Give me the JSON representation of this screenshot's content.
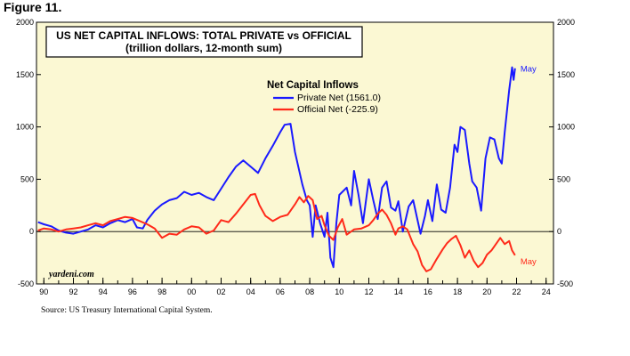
{
  "figure_label": "Figure 11.",
  "source_note": "Source: US Treasury International Capital System.",
  "watermark": "yardeni.com",
  "colors": {
    "background": "#fbf8d3",
    "private": "#1a1aff",
    "official": "#ff2a1a",
    "axis": "#000000"
  },
  "chart_data": {
    "type": "line",
    "title": "US NET CAPITAL INFLOWS: TOTAL PRIVATE vs OFFICIAL",
    "subtitle": "(trillion dollars, 12-month sum)",
    "legend_title": "Net Capital Inflows",
    "legend_position": "top-center",
    "ylim": [
      -500,
      2000
    ],
    "yticks": [
      -500,
      0,
      500,
      1000,
      1500,
      2000
    ],
    "ytick_labels": [
      "-500",
      "0",
      "500",
      "1000",
      "1500",
      "2000"
    ],
    "xlim": [
      1989.5,
      2024.5
    ],
    "xticks": [
      1990,
      1992,
      1994,
      1996,
      1998,
      2000,
      2002,
      2004,
      2006,
      2008,
      2010,
      2012,
      2014,
      2016,
      2018,
      2020,
      2022,
      2024
    ],
    "xtick_labels": [
      "90",
      "92",
      "94",
      "96",
      "98",
      "00",
      "02",
      "04",
      "06",
      "08",
      "10",
      "12",
      "14",
      "16",
      "18",
      "20",
      "22",
      "24"
    ],
    "grid": false,
    "zero_line": true,
    "series": [
      {
        "name": "Private Net (1561.0)",
        "color": "#1a1aff",
        "end_label": "May",
        "points": [
          [
            1989.6,
            90
          ],
          [
            1990.0,
            70
          ],
          [
            1990.5,
            50
          ],
          [
            1991.0,
            10
          ],
          [
            1991.5,
            -10
          ],
          [
            1992.0,
            -20
          ],
          [
            1992.5,
            0
          ],
          [
            1993.0,
            20
          ],
          [
            1993.5,
            60
          ],
          [
            1994.0,
            40
          ],
          [
            1994.5,
            80
          ],
          [
            1995.0,
            110
          ],
          [
            1995.5,
            90
          ],
          [
            1996.0,
            120
          ],
          [
            1996.3,
            40
          ],
          [
            1996.7,
            30
          ],
          [
            1997.0,
            110
          ],
          [
            1997.5,
            200
          ],
          [
            1998.0,
            260
          ],
          [
            1998.5,
            300
          ],
          [
            1999.0,
            320
          ],
          [
            1999.5,
            380
          ],
          [
            2000.0,
            350
          ],
          [
            2000.5,
            370
          ],
          [
            2001.0,
            330
          ],
          [
            2001.5,
            300
          ],
          [
            2002.0,
            410
          ],
          [
            2002.5,
            520
          ],
          [
            2003.0,
            620
          ],
          [
            2003.5,
            680
          ],
          [
            2004.0,
            620
          ],
          [
            2004.5,
            560
          ],
          [
            2005.0,
            700
          ],
          [
            2005.5,
            820
          ],
          [
            2006.0,
            950
          ],
          [
            2006.3,
            1020
          ],
          [
            2006.7,
            1030
          ],
          [
            2007.0,
            760
          ],
          [
            2007.5,
            450
          ],
          [
            2007.8,
            300
          ],
          [
            2008.0,
            250
          ],
          [
            2008.2,
            -50
          ],
          [
            2008.4,
            250
          ],
          [
            2008.7,
            80
          ],
          [
            2009.0,
            -50
          ],
          [
            2009.2,
            180
          ],
          [
            2009.4,
            -250
          ],
          [
            2009.6,
            -340
          ],
          [
            2009.8,
            80
          ],
          [
            2010.0,
            350
          ],
          [
            2010.5,
            420
          ],
          [
            2010.8,
            250
          ],
          [
            2011.0,
            580
          ],
          [
            2011.3,
            350
          ],
          [
            2011.6,
            80
          ],
          [
            2012.0,
            500
          ],
          [
            2012.3,
            300
          ],
          [
            2012.6,
            120
          ],
          [
            2012.9,
            420
          ],
          [
            2013.2,
            480
          ],
          [
            2013.5,
            230
          ],
          [
            2013.8,
            200
          ],
          [
            2014.0,
            290
          ],
          [
            2014.3,
            0
          ],
          [
            2014.7,
            240
          ],
          [
            2015.0,
            300
          ],
          [
            2015.5,
            -20
          ],
          [
            2015.8,
            150
          ],
          [
            2016.0,
            300
          ],
          [
            2016.3,
            100
          ],
          [
            2016.6,
            450
          ],
          [
            2016.9,
            210
          ],
          [
            2017.2,
            180
          ],
          [
            2017.5,
            420
          ],
          [
            2017.8,
            830
          ],
          [
            2018.0,
            760
          ],
          [
            2018.2,
            1000
          ],
          [
            2018.5,
            970
          ],
          [
            2018.8,
            650
          ],
          [
            2019.0,
            480
          ],
          [
            2019.3,
            420
          ],
          [
            2019.6,
            200
          ],
          [
            2019.9,
            700
          ],
          [
            2020.2,
            900
          ],
          [
            2020.5,
            880
          ],
          [
            2020.8,
            700
          ],
          [
            2021.0,
            650
          ],
          [
            2021.2,
            950
          ],
          [
            2021.5,
            1350
          ],
          [
            2021.7,
            1570
          ],
          [
            2021.8,
            1450
          ],
          [
            2021.9,
            1560
          ]
        ]
      },
      {
        "name": "Official Net (-225.9)",
        "color": "#ff2a1a",
        "end_label": "May",
        "points": [
          [
            1989.6,
            10
          ],
          [
            1990.0,
            30
          ],
          [
            1990.5,
            20
          ],
          [
            1991.0,
            0
          ],
          [
            1991.5,
            20
          ],
          [
            1992.0,
            30
          ],
          [
            1992.5,
            40
          ],
          [
            1993.0,
            60
          ],
          [
            1993.5,
            80
          ],
          [
            1994.0,
            60
          ],
          [
            1994.5,
            100
          ],
          [
            1995.0,
            120
          ],
          [
            1995.5,
            140
          ],
          [
            1996.0,
            130
          ],
          [
            1996.5,
            100
          ],
          [
            1997.0,
            70
          ],
          [
            1997.5,
            30
          ],
          [
            1998.0,
            -60
          ],
          [
            1998.5,
            -20
          ],
          [
            1999.0,
            -30
          ],
          [
            1999.5,
            20
          ],
          [
            2000.0,
            50
          ],
          [
            2000.5,
            40
          ],
          [
            2001.0,
            -20
          ],
          [
            2001.5,
            10
          ],
          [
            2002.0,
            110
          ],
          [
            2002.5,
            90
          ],
          [
            2003.0,
            170
          ],
          [
            2003.5,
            260
          ],
          [
            2004.0,
            350
          ],
          [
            2004.3,
            360
          ],
          [
            2004.6,
            250
          ],
          [
            2005.0,
            150
          ],
          [
            2005.5,
            100
          ],
          [
            2006.0,
            140
          ],
          [
            2006.5,
            160
          ],
          [
            2007.0,
            260
          ],
          [
            2007.3,
            330
          ],
          [
            2007.6,
            280
          ],
          [
            2007.9,
            340
          ],
          [
            2008.2,
            300
          ],
          [
            2008.5,
            120
          ],
          [
            2008.8,
            150
          ],
          [
            2009.0,
            60
          ],
          [
            2009.3,
            -40
          ],
          [
            2009.6,
            -80
          ],
          [
            2009.9,
            40
          ],
          [
            2010.2,
            120
          ],
          [
            2010.5,
            -30
          ],
          [
            2011.0,
            20
          ],
          [
            2011.5,
            30
          ],
          [
            2012.0,
            60
          ],
          [
            2012.3,
            110
          ],
          [
            2012.6,
            170
          ],
          [
            2012.9,
            210
          ],
          [
            2013.2,
            160
          ],
          [
            2013.5,
            80
          ],
          [
            2013.8,
            -30
          ],
          [
            2014.0,
            30
          ],
          [
            2014.3,
            50
          ],
          [
            2014.6,
            20
          ],
          [
            2015.0,
            -120
          ],
          [
            2015.3,
            -190
          ],
          [
            2015.6,
            -320
          ],
          [
            2015.9,
            -380
          ],
          [
            2016.2,
            -360
          ],
          [
            2016.6,
            -260
          ],
          [
            2017.0,
            -170
          ],
          [
            2017.3,
            -110
          ],
          [
            2017.6,
            -70
          ],
          [
            2017.9,
            -40
          ],
          [
            2018.2,
            -130
          ],
          [
            2018.5,
            -250
          ],
          [
            2018.8,
            -180
          ],
          [
            2019.1,
            -280
          ],
          [
            2019.4,
            -340
          ],
          [
            2019.7,
            -300
          ],
          [
            2020.0,
            -220
          ],
          [
            2020.3,
            -180
          ],
          [
            2020.6,
            -120
          ],
          [
            2020.9,
            -60
          ],
          [
            2021.2,
            -120
          ],
          [
            2021.5,
            -90
          ],
          [
            2021.7,
            -180
          ],
          [
            2021.9,
            -226
          ]
        ]
      }
    ]
  }
}
